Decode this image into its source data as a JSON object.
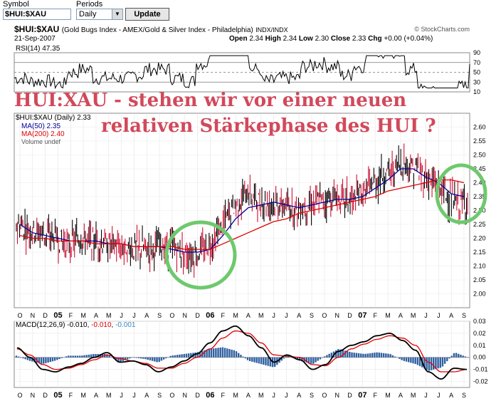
{
  "controls": {
    "symbol_label": "Symbol",
    "symbol_value": "$HUI:$XAU",
    "periods_label": "Periods",
    "period_value": "Daily",
    "update_label": "Update"
  },
  "header": {
    "ticker": "$HUI:$XAU",
    "description": "(Gold Bugs Index - AMEX/Gold & Silver Index - Philadelphia)",
    "exchange": "INDX/INDX",
    "copyright": "© StockCharts.com",
    "date": "21-Sep-2007",
    "open_label": "Open",
    "open": "2.34",
    "high_label": "High",
    "high": "2.34",
    "low_label": "Low",
    "low": "2.30",
    "close_label": "Close",
    "close": "2.33",
    "chg_label": "Chg",
    "chg": "+0.00 (+0.04%)"
  },
  "overlay": {
    "line1": "HUI:XAU - stehen wir vor einer neuen",
    "line2": "relativen Stärkephase des HUI ?"
  },
  "colors": {
    "price_up": "#cc1133",
    "price_down": "#000000",
    "ma50": "#000099",
    "ma200": "#e00000",
    "macd_line": "#000000",
    "signal_line": "#e00000",
    "histogram": "#3060a0",
    "circle": "#6dc96d",
    "overlay_text": "#d1495b"
  },
  "chart_data": {
    "type": "line",
    "x_months": [
      "O",
      "N",
      "D",
      "05",
      "F",
      "M",
      "A",
      "M",
      "J",
      "J",
      "A",
      "S",
      "O",
      "N",
      "D",
      "06",
      "F",
      "M",
      "A",
      "M",
      "J",
      "J",
      "A",
      "S",
      "O",
      "N",
      "D",
      "07",
      "F",
      "M",
      "A",
      "M",
      "J",
      "J",
      "A",
      "S"
    ],
    "rsi": {
      "legend": "RSI(14) 47.35",
      "ylim": [
        10,
        90
      ],
      "yticks": [
        90,
        70,
        50,
        30,
        10
      ],
      "reference_lines": [
        70,
        50,
        30
      ]
    },
    "price": {
      "legend": "$HUI:$XAU (Daily) 2.33",
      "ylim": [
        1.95,
        2.65
      ],
      "yticks": [
        2.6,
        2.55,
        2.5,
        2.45,
        2.4,
        2.35,
        2.3,
        2.25,
        2.2,
        2.15,
        2.1,
        2.05,
        2.0
      ],
      "close_approx": [
        2.25,
        2.23,
        2.22,
        2.2,
        2.18,
        2.2,
        2.19,
        2.18,
        2.17,
        2.16,
        2.16,
        2.17,
        2.17,
        2.15,
        2.14,
        2.18,
        2.25,
        2.32,
        2.36,
        2.33,
        2.33,
        2.31,
        2.31,
        2.33,
        2.34,
        2.35,
        2.33,
        2.37,
        2.41,
        2.44,
        2.47,
        2.45,
        2.41,
        2.38,
        2.32,
        2.33
      ],
      "series": [
        {
          "name": "MA(50) 2.35",
          "values": [
            2.25,
            2.22,
            2.21,
            2.2,
            2.19,
            2.19,
            2.19,
            2.18,
            2.18,
            2.17,
            2.17,
            2.17,
            2.16,
            2.15,
            2.15,
            2.16,
            2.21,
            2.27,
            2.31,
            2.32,
            2.33,
            2.32,
            2.31,
            2.32,
            2.33,
            2.34,
            2.34,
            2.35,
            2.38,
            2.41,
            2.45,
            2.45,
            2.42,
            2.4,
            2.36,
            2.35
          ]
        },
        {
          "name": "MA(200) 2.40",
          "values": [
            2.21,
            2.2,
            2.2,
            2.19,
            2.19,
            2.19,
            2.18,
            2.18,
            2.18,
            2.17,
            2.17,
            2.17,
            2.17,
            2.16,
            2.16,
            2.16,
            2.18,
            2.2,
            2.22,
            2.24,
            2.26,
            2.27,
            2.29,
            2.3,
            2.31,
            2.32,
            2.33,
            2.34,
            2.35,
            2.37,
            2.38,
            2.39,
            2.4,
            2.41,
            2.41,
            2.4
          ]
        }
      ],
      "volume_legend": "Volume undef"
    },
    "macd": {
      "legend_prefix": "MACD(12,26,9)",
      "legend_macd": "-0.010",
      "legend_signal": "-0.010",
      "legend_hist": "-0.001",
      "ylim": [
        -0.025,
        0.03
      ],
      "yticks": [
        "0.03",
        "0.02",
        "0.01",
        "0.00",
        "-0.01",
        "-0.02"
      ],
      "macd_values": [
        0.008,
        0.0,
        -0.01,
        -0.012,
        -0.008,
        -0.005,
        0.0,
        0.004,
        -0.004,
        -0.003,
        -0.006,
        -0.012,
        -0.008,
        -0.003,
        0.003,
        0.012,
        0.022,
        0.026,
        0.018,
        0.008,
        -0.004,
        0.002,
        -0.002,
        -0.01,
        -0.006,
        0.005,
        0.01,
        0.013,
        0.018,
        0.02,
        0.014,
        0.006,
        -0.012,
        -0.018,
        -0.009,
        -0.01
      ],
      "signal_values": [
        0.007,
        0.002,
        -0.006,
        -0.01,
        -0.009,
        -0.006,
        -0.002,
        0.002,
        -0.001,
        -0.003,
        -0.005,
        -0.009,
        -0.009,
        -0.005,
        0.0,
        0.007,
        0.016,
        0.022,
        0.02,
        0.012,
        0.002,
        0.001,
        0.0,
        -0.006,
        -0.007,
        0.0,
        0.007,
        0.011,
        0.015,
        0.018,
        0.016,
        0.01,
        -0.004,
        -0.012,
        -0.012,
        -0.01
      ]
    }
  }
}
